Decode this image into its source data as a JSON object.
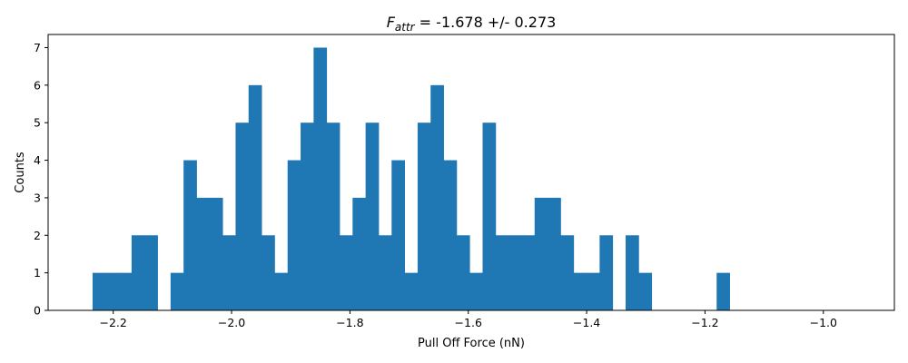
{
  "chart_data": {
    "type": "bar",
    "title": {
      "prefix": "F",
      "subscript": "attr",
      "suffix": " = -1.678 +/- 0.273"
    },
    "xlabel": "Pull Off Force (nN)",
    "ylabel": "Counts",
    "xlim": [
      -2.31,
      -0.88
    ],
    "ylim": [
      0,
      7.35
    ],
    "x_ticks": [
      -2.2,
      -2.0,
      -1.8,
      -1.6,
      -1.4,
      -1.2,
      -1.0
    ],
    "x_tick_labels": [
      "−2.2",
      "−2.0",
      "−1.8",
      "−1.6",
      "−1.4",
      "−1.2",
      "−1.0"
    ],
    "y_ticks": [
      0,
      1,
      2,
      3,
      4,
      5,
      6,
      7
    ],
    "y_tick_labels": [
      "0",
      "1",
      "2",
      "3",
      "4",
      "5",
      "6",
      "7"
    ],
    "bin_start": -2.2349,
    "bin_width": 0.02197,
    "counts": [
      1,
      1,
      1,
      2,
      2,
      0,
      1,
      4,
      3,
      3,
      2,
      5,
      6,
      2,
      1,
      4,
      5,
      7,
      5,
      2,
      3,
      5,
      2,
      4,
      1,
      5,
      6,
      4,
      2,
      1,
      5,
      2,
      2,
      2,
      3,
      3,
      2,
      1,
      1,
      2,
      0,
      2,
      1,
      0,
      0,
      0,
      0,
      0,
      1
    ],
    "bar_color": "#1f77b4",
    "grid": false,
    "legend": "none"
  }
}
